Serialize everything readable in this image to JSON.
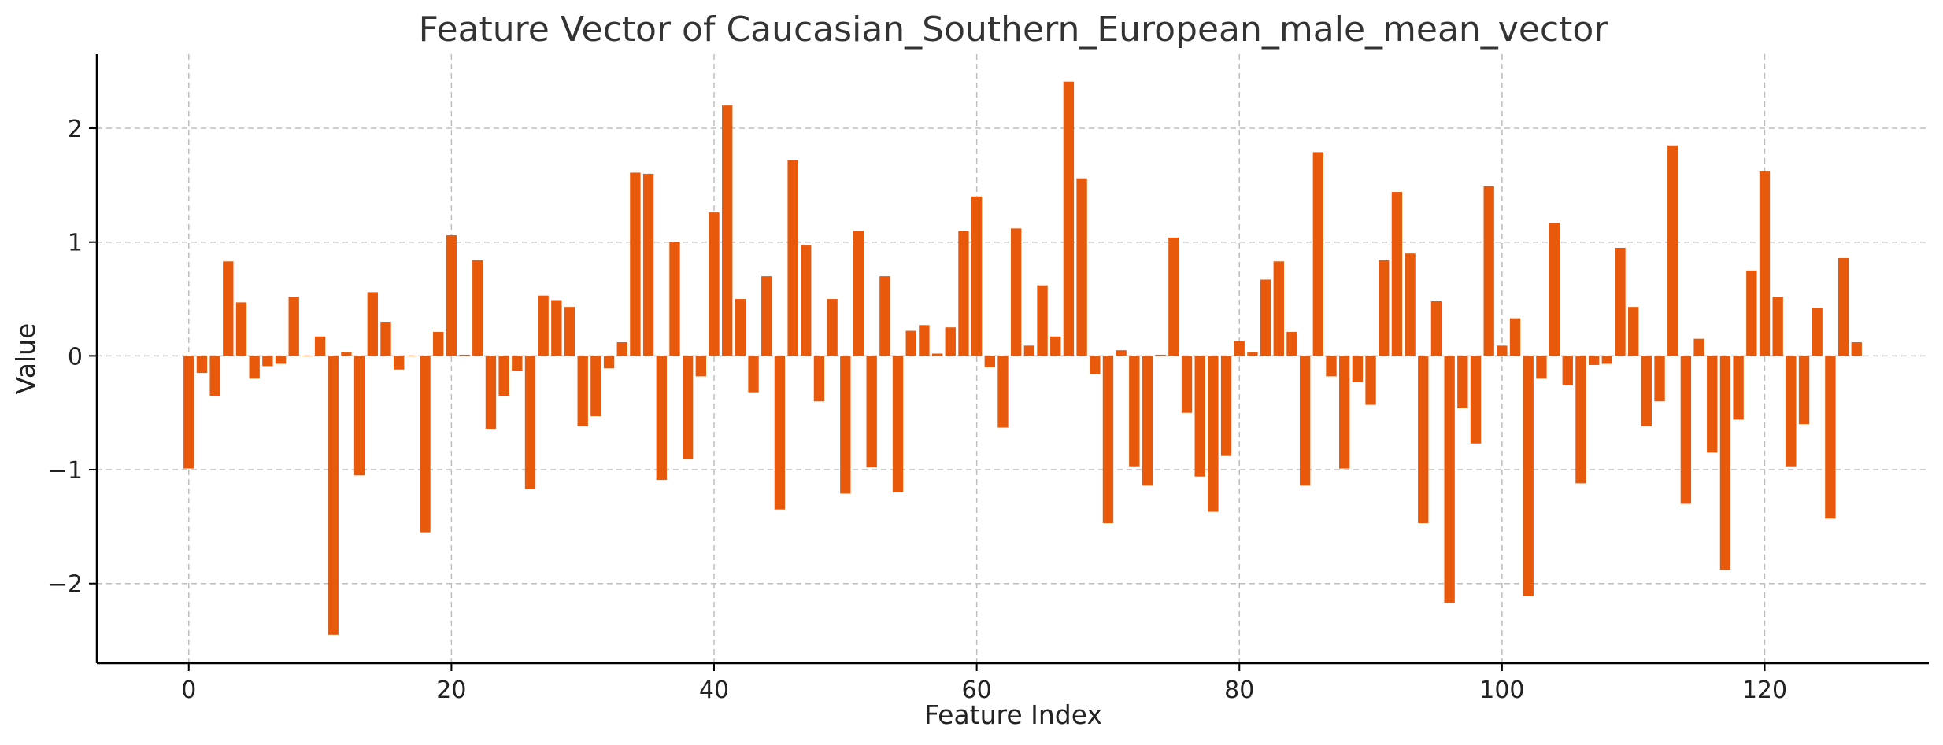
{
  "chart_data": {
    "type": "bar",
    "title": "Feature Vector of Caucasian_Southern_European_male_mean_vector",
    "xlabel": "Feature Index",
    "ylabel": "Value",
    "bar_color": "#e8590c",
    "grid": true,
    "xlim": [
      -7,
      132.5
    ],
    "ylim": [
      -2.7,
      2.65
    ],
    "xticks": [
      0,
      20,
      40,
      60,
      80,
      100,
      120
    ],
    "yticks": [
      -2,
      -1,
      0,
      1,
      2
    ],
    "ytick_labels": [
      "−2",
      "−1",
      "0",
      "1",
      "2"
    ],
    "x": [
      0,
      1,
      2,
      3,
      4,
      5,
      6,
      7,
      8,
      9,
      10,
      11,
      12,
      13,
      14,
      15,
      16,
      17,
      18,
      19,
      20,
      21,
      22,
      23,
      24,
      25,
      26,
      27,
      28,
      29,
      30,
      31,
      32,
      33,
      34,
      35,
      36,
      37,
      38,
      39,
      40,
      41,
      42,
      43,
      44,
      45,
      46,
      47,
      48,
      49,
      50,
      51,
      52,
      53,
      54,
      55,
      56,
      57,
      58,
      59,
      60,
      61,
      62,
      63,
      64,
      65,
      66,
      67,
      68,
      69,
      70,
      71,
      72,
      73,
      74,
      75,
      76,
      77,
      78,
      79,
      80,
      81,
      82,
      83,
      84,
      85,
      86,
      87,
      88,
      89,
      90,
      91,
      92,
      93,
      94,
      95,
      96,
      97,
      98,
      99,
      100,
      101,
      102,
      103,
      104,
      105,
      106,
      107,
      108,
      109,
      110,
      111,
      112,
      113,
      114,
      115,
      116,
      117,
      118,
      119,
      120,
      121,
      122,
      123,
      124,
      125,
      126,
      127
    ],
    "values": [
      -0.99,
      -0.15,
      -0.35,
      0.83,
      0.47,
      -0.2,
      -0.09,
      -0.07,
      0.52,
      0.0,
      0.17,
      -2.45,
      0.03,
      -1.05,
      0.56,
      0.3,
      -0.12,
      0.0,
      -1.55,
      0.21,
      1.06,
      0.01,
      0.84,
      -0.64,
      -0.35,
      -0.13,
      -1.17,
      0.53,
      0.49,
      0.43,
      -0.62,
      -0.53,
      -0.11,
      0.12,
      1.61,
      1.6,
      -1.09,
      1.0,
      -0.91,
      -0.18,
      1.26,
      2.2,
      0.5,
      -0.32,
      0.7,
      -1.35,
      1.72,
      0.97,
      -0.4,
      0.5,
      -1.21,
      1.1,
      -0.98,
      0.7,
      -1.2,
      0.22,
      0.27,
      0.02,
      0.25,
      1.1,
      1.4,
      -0.1,
      -0.63,
      1.12,
      0.09,
      0.62,
      0.17,
      2.41,
      1.56,
      -0.16,
      -1.47,
      0.05,
      -0.97,
      -1.14,
      0.01,
      1.04,
      -0.5,
      -1.06,
      -1.37,
      -0.88,
      0.13,
      0.03,
      0.67,
      0.83,
      0.21,
      -1.14,
      1.79,
      -0.18,
      -0.99,
      -0.23,
      -0.43,
      0.84,
      1.44,
      0.9,
      -1.47,
      0.48,
      -2.17,
      -0.46,
      -0.77,
      1.49,
      0.09,
      0.33,
      -2.11,
      -0.2,
      1.17,
      -0.26,
      -1.12,
      -0.08,
      -0.07,
      0.95,
      0.43,
      -0.62,
      -0.4,
      1.85,
      -1.3,
      0.15,
      -0.85,
      -1.88,
      -0.56,
      0.75,
      1.62,
      0.52,
      -0.97,
      -0.6,
      0.42,
      -1.43,
      0.86,
      0.12
    ]
  }
}
